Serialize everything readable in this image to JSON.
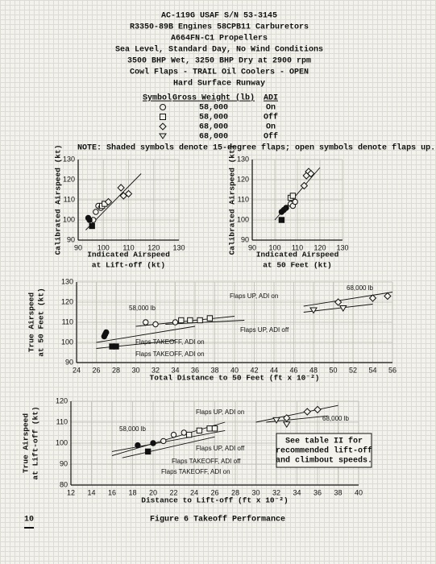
{
  "header": {
    "lines": [
      "AC-119G  USAF S/N 53-3145",
      "R3350-89B Engines  58CPB11 Carburetors",
      "A664FN-C1 Propellers",
      "Sea Level, Standard Day, No Wind Conditions",
      "3500 BHP Wet, 3250 BHP Dry at 2900 rpm",
      "Cowl Flaps - TRAIL  Oil Coolers - OPEN",
      "Hard Surface Runway"
    ]
  },
  "legend_table": {
    "columns": [
      "Symbol",
      "Gross Weight (lb)",
      "ADI"
    ],
    "rows": [
      [
        "58,000",
        "On"
      ],
      [
        "58,000",
        "Off"
      ],
      [
        "68,000",
        "On"
      ],
      [
        "68,000",
        "Off"
      ]
    ]
  },
  "note": "NOTE:  Shaded symbols denote 15-degree flaps; open symbols denote flaps up.",
  "chart_data": [
    {
      "type": "scatter",
      "y_label": [
        "Calibrated Airspeed (kt)"
      ],
      "x_label": [
        "Indicated Airspeed",
        "at Lift-off (kt)"
      ],
      "xlim": [
        90,
        130
      ],
      "xticks": [
        90,
        100,
        110,
        120,
        130
      ],
      "ylim": [
        90,
        130
      ],
      "yticks": [
        90,
        100,
        110,
        120,
        130
      ],
      "series": [
        {
          "marker": "circle",
          "filled": false,
          "x": [
            96,
            97,
            98,
            99
          ],
          "values": [
            100,
            104,
            107,
            106
          ]
        },
        {
          "marker": "circle",
          "filled": true,
          "x": [
            94,
            94.5
          ],
          "values": [
            101,
            100
          ]
        },
        {
          "marker": "square",
          "filled": true,
          "x": [
            95.5
          ],
          "values": [
            97
          ]
        },
        {
          "marker": "square",
          "filled": false,
          "x": [
            99.5,
            100.5
          ],
          "values": [
            107,
            108
          ]
        },
        {
          "marker": "diamond",
          "filled": false,
          "x": [
            102,
            107,
            108,
            110
          ],
          "values": [
            109,
            116,
            112,
            113
          ]
        }
      ],
      "fit_lines": [
        {
          "x": [
            93,
            115
          ],
          "values": [
            95,
            123
          ]
        }
      ],
      "annotations": []
    },
    {
      "type": "scatter",
      "y_label": [
        "Calibrated Airspeed (kt)"
      ],
      "x_label": [
        "Indicated Airspeed",
        "at 50 Feet (kt)"
      ],
      "xlim": [
        90,
        130
      ],
      "xticks": [
        90,
        100,
        110,
        120,
        130
      ],
      "ylim": [
        90,
        130
      ],
      "yticks": [
        90,
        100,
        110,
        120,
        130
      ],
      "series": [
        {
          "marker": "circle",
          "filled": false,
          "x": [
            107,
            108,
            109
          ],
          "values": [
            108,
            107,
            109
          ]
        },
        {
          "marker": "circle",
          "filled": true,
          "x": [
            103,
            104,
            105
          ],
          "values": [
            104,
            105,
            106
          ]
        },
        {
          "marker": "square",
          "filled": true,
          "x": [
            103
          ],
          "values": [
            100
          ]
        },
        {
          "marker": "square",
          "filled": false,
          "x": [
            107,
            108
          ],
          "values": [
            111,
            112
          ]
        },
        {
          "marker": "diamond",
          "filled": false,
          "x": [
            113,
            114,
            115,
            116
          ],
          "values": [
            117,
            122,
            124,
            123
          ]
        }
      ],
      "fit_lines": [
        {
          "x": [
            100,
            120
          ],
          "values": [
            100,
            126
          ]
        }
      ],
      "annotations": []
    },
    {
      "type": "scatter",
      "y_label": [
        "True Airspeed",
        "at 50 Feet (kt)"
      ],
      "x_label": [
        "Total Distance to 50 Feet (ft x 10⁻²)"
      ],
      "xlim": [
        24,
        56
      ],
      "xticks": [
        24,
        26,
        28,
        30,
        32,
        34,
        36,
        38,
        40,
        42,
        44,
        46,
        48,
        50,
        52,
        54,
        56
      ],
      "ylim": [
        90,
        130
      ],
      "yticks": [
        90,
        100,
        110,
        120,
        130
      ],
      "series": [
        {
          "marker": "circle",
          "filled": true,
          "x": [
            26.8,
            27,
            26.9
          ],
          "values": [
            103,
            105,
            104
          ]
        },
        {
          "marker": "square",
          "filled": true,
          "x": [
            27.6,
            28
          ],
          "values": [
            98,
            98
          ]
        },
        {
          "marker": "circle",
          "filled": false,
          "x": [
            31,
            32,
            34
          ],
          "values": [
            110,
            109,
            110
          ]
        },
        {
          "marker": "square",
          "filled": false,
          "x": [
            34.6,
            35.5,
            36.5,
            37.5
          ],
          "values": [
            111,
            111,
            111,
            112
          ]
        },
        {
          "marker": "triangle",
          "filled": false,
          "x": [
            48,
            51
          ],
          "values": [
            116,
            117
          ]
        },
        {
          "marker": "diamond",
          "filled": false,
          "x": [
            50.5,
            54,
            55.5
          ],
          "values": [
            120,
            122,
            123
          ]
        }
      ],
      "fit_lines": [
        {
          "x": [
            26,
            36
          ],
          "values": [
            100,
            108
          ]
        },
        {
          "x": [
            26,
            34
          ],
          "values": [
            97,
            101
          ]
        },
        {
          "x": [
            30,
            40
          ],
          "values": [
            108,
            113
          ]
        },
        {
          "x": [
            33,
            41
          ],
          "values": [
            109,
            111
          ]
        },
        {
          "x": [
            47,
            56
          ],
          "values": [
            118,
            125
          ]
        },
        {
          "x": [
            47,
            54
          ],
          "values": [
            115,
            119
          ]
        }
      ],
      "annotations": [
        "58,000 lb",
        "Flaps UP, ADI on",
        "Flaps UP, ADI off",
        "Flaps TAKEOFF, ADI on",
        "Flaps TAKEOFF, ADI on",
        "68,000 lb"
      ]
    },
    {
      "type": "scatter",
      "y_label": [
        "True Airspeed",
        "at Lift-off (kt)"
      ],
      "x_label": [
        "Distance to Lift-off (ft x 10⁻²)"
      ],
      "xlim": [
        12,
        40
      ],
      "xticks": [
        12,
        14,
        16,
        18,
        20,
        22,
        24,
        26,
        28,
        30,
        32,
        34,
        36,
        38,
        40
      ],
      "ylim": [
        80,
        120
      ],
      "yticks": [
        80,
        90,
        100,
        110,
        120
      ],
      "series": [
        {
          "marker": "circle",
          "filled": true,
          "x": [
            18.5,
            20
          ],
          "values": [
            99,
            100
          ]
        },
        {
          "marker": "square",
          "filled": true,
          "x": [
            19.5
          ],
          "values": [
            96
          ]
        },
        {
          "marker": "circle",
          "filled": false,
          "x": [
            21,
            22,
            23
          ],
          "values": [
            101,
            104,
            105
          ]
        },
        {
          "marker": "square",
          "filled": false,
          "x": [
            23.5,
            24.5,
            25.5,
            26
          ],
          "values": [
            104,
            106,
            107,
            107
          ]
        },
        {
          "marker": "diamond",
          "filled": false,
          "x": [
            33,
            35,
            36
          ],
          "values": [
            112,
            115,
            116
          ]
        },
        {
          "marker": "triangle",
          "filled": false,
          "x": [
            32,
            33
          ],
          "values": [
            111,
            109
          ]
        }
      ],
      "fit_lines": [
        {
          "x": [
            16,
            27
          ],
          "values": [
            94,
            110
          ]
        },
        {
          "x": [
            16,
            27
          ],
          "values": [
            96,
            106
          ]
        },
        {
          "x": [
            17,
            26
          ],
          "values": [
            93,
            103
          ]
        },
        {
          "x": [
            30,
            38
          ],
          "values": [
            110,
            118
          ]
        },
        {
          "x": [
            31,
            37
          ],
          "values": [
            110,
            113
          ]
        }
      ],
      "annotations": [
        "Flaps UP, ADI on",
        "58,000 lb",
        "Flaps UP, ADI off",
        "Flaps TAKEOFF, ADI off",
        "Flaps TAKEOFF, ADI on",
        "68,000 lb"
      ],
      "note_box": [
        "See table II for",
        "recommended lift-off",
        "and climbout speeds."
      ]
    }
  ],
  "footer": {
    "page": "10",
    "caption": "Figure 6    Takeoff Performance"
  }
}
